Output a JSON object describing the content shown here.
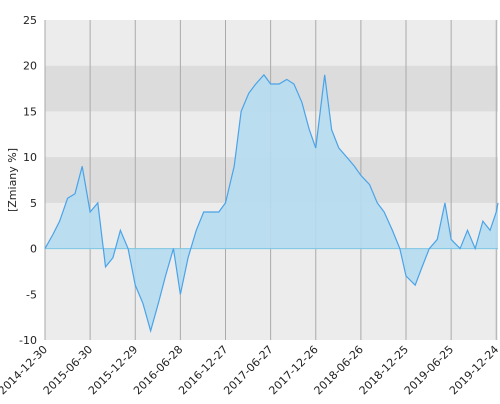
{
  "chart_data": {
    "type": "area",
    "y_label": "[Zmiany %]",
    "x": [
      "2014-12-30",
      "2015-01-30",
      "2015-02-27",
      "2015-03-31",
      "2015-04-30",
      "2015-05-29",
      "2015-06-30",
      "2015-07-31",
      "2015-08-31",
      "2015-09-30",
      "2015-10-30",
      "2015-11-30",
      "2015-12-29",
      "2016-01-29",
      "2016-02-29",
      "2016-03-31",
      "2016-04-29",
      "2016-05-31",
      "2016-06-28",
      "2016-07-29",
      "2016-08-31",
      "2016-09-30",
      "2016-10-31",
      "2016-11-30",
      "2016-12-27",
      "2017-01-31",
      "2017-02-28",
      "2017-03-31",
      "2017-04-28",
      "2017-05-31",
      "2017-06-27",
      "2017-07-31",
      "2017-08-31",
      "2017-09-29",
      "2017-10-31",
      "2017-11-30",
      "2017-12-26",
      "2018-01-31",
      "2018-02-28",
      "2018-03-29",
      "2018-04-30",
      "2018-05-31",
      "2018-06-26",
      "2018-07-31",
      "2018-08-31",
      "2018-09-28",
      "2018-10-31",
      "2018-11-30",
      "2018-12-25",
      "2019-01-31",
      "2019-02-28",
      "2019-03-29",
      "2019-04-30",
      "2019-05-31",
      "2019-06-25",
      "2019-07-31",
      "2019-08-30",
      "2019-09-30",
      "2019-10-31",
      "2019-11-29",
      "2019-12-24",
      "2019-12-31"
    ],
    "series": [
      {
        "name": "Zmiany",
        "color": "#4aa3e8",
        "fill": "#b5dcef",
        "values": [
          0,
          1.5,
          3,
          5.5,
          6,
          9,
          4,
          5,
          -2,
          -1,
          2,
          0,
          -4,
          -6,
          -9,
          -6,
          -3,
          0,
          -5,
          -1,
          2,
          4,
          4,
          4,
          5,
          9,
          15,
          17,
          18,
          19,
          18,
          18,
          18.5,
          18,
          16,
          13,
          11,
          19,
          13,
          11,
          10,
          9,
          8,
          7,
          5,
          4,
          2,
          0,
          -3,
          -4,
          -2,
          0,
          1,
          5,
          1,
          0,
          2,
          0,
          3,
          2,
          4,
          5
        ]
      }
    ],
    "xlim": [
      "2014-12-30",
      "2019-12-31"
    ],
    "xticks": [
      "2014-12-30",
      "2015-06-30",
      "2015-12-29",
      "2016-06-28",
      "2016-12-27",
      "2017-06-27",
      "2017-12-26",
      "2018-06-26",
      "2018-12-25",
      "2019-06-25",
      "2019-12-24"
    ],
    "ylim": [
      -10,
      25
    ],
    "yticks": [
      -10,
      -5,
      0,
      5,
      10,
      15,
      20,
      25
    ],
    "shaded_bands": [
      [
        15,
        20
      ],
      [
        5,
        10
      ]
    ],
    "grid": true
  }
}
